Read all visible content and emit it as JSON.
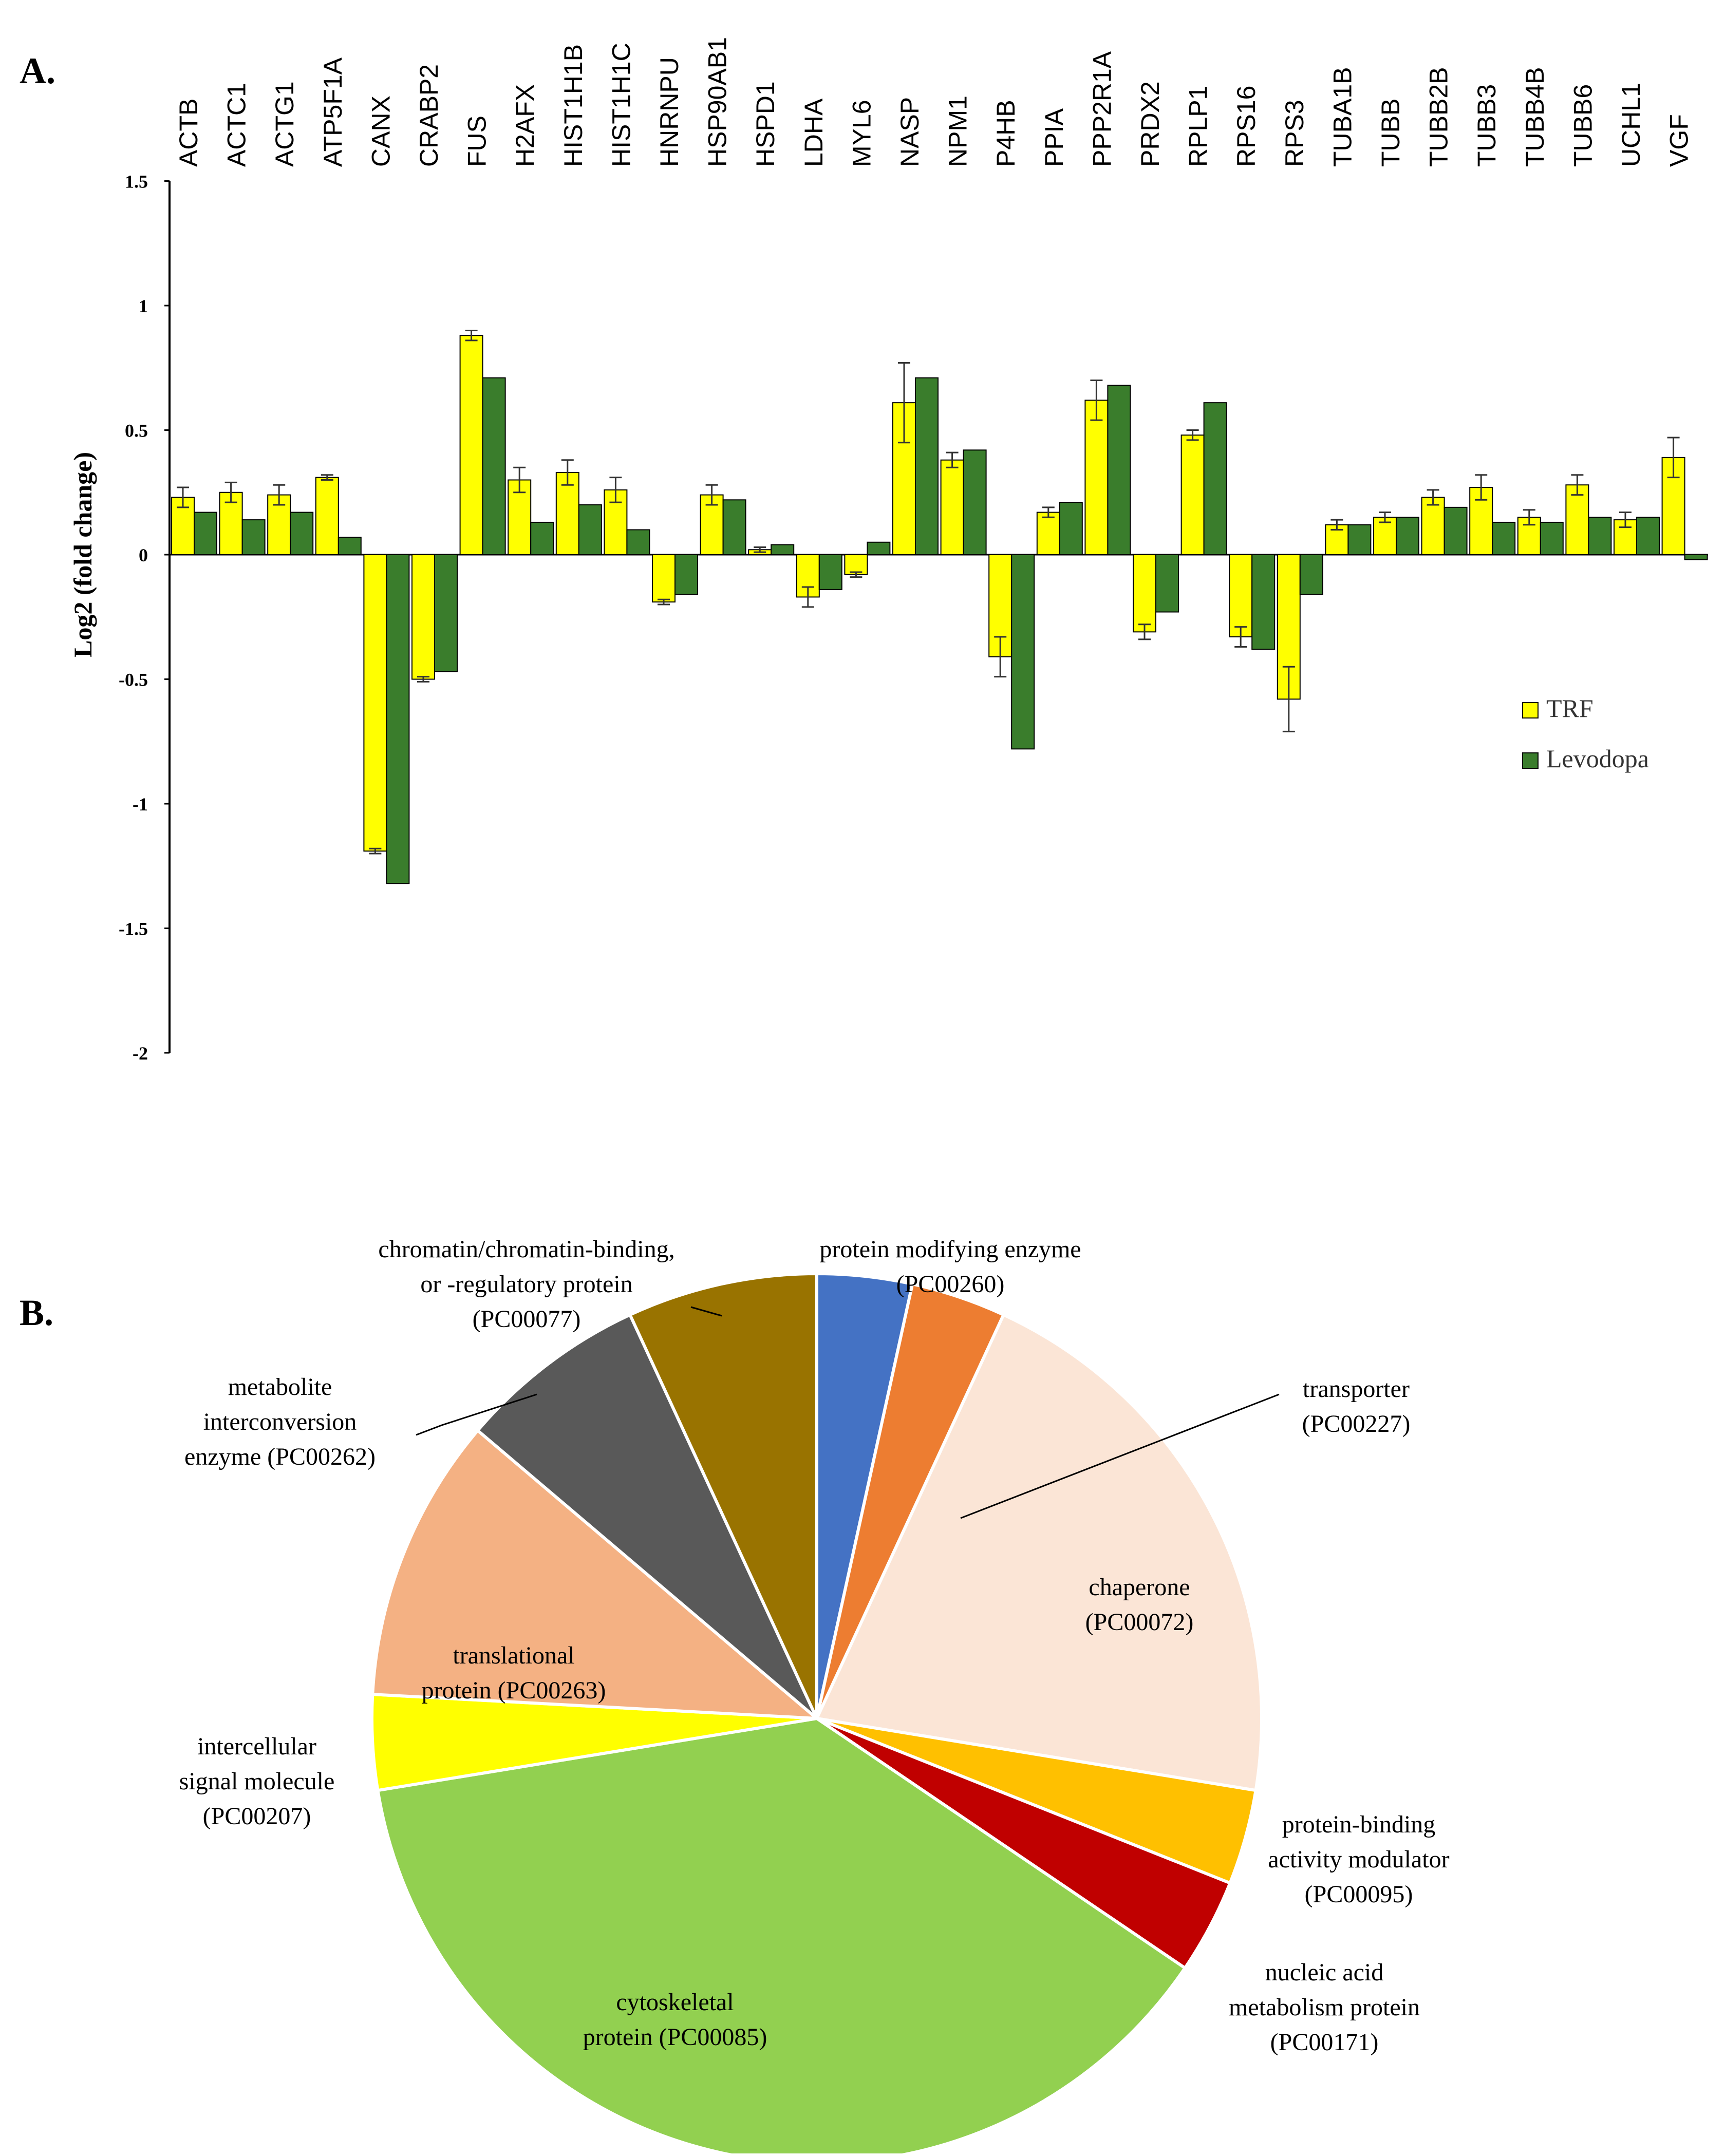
{
  "chart_data": [
    {
      "panel": "A.",
      "type": "bar",
      "ylabel": "Log2 (fold change)",
      "ylim": [
        -2,
        1.5
      ],
      "yticks": [
        1.5,
        1,
        0.5,
        0,
        -0.5,
        -1,
        -1.5,
        -2
      ],
      "categories": [
        "ACTB",
        "ACTC1",
        "ACTG1",
        "ATP5F1A",
        "CANX",
        "CRABP2",
        "FUS",
        "H2AFX",
        "HIST1H1B",
        "HIST1H1C",
        "HNRNPU",
        "HSP90AB1",
        "HSPD1",
        "LDHA",
        "MYL6",
        "NASP",
        "NPM1",
        "P4HB",
        "PPIA",
        "PPP2R1A",
        "PRDX2",
        "RPLP1",
        "RPS16",
        "RPS3",
        "TUBA1B",
        "TUBB",
        "TUBB2B",
        "TUBB3",
        "TUBB4B",
        "TUBB6",
        "UCHL1",
        "VGF"
      ],
      "series": [
        {
          "name": "TRF",
          "color": "#FFFF00",
          "values": [
            0.23,
            0.25,
            0.24,
            0.31,
            -1.19,
            -0.5,
            0.88,
            0.3,
            0.33,
            0.26,
            -0.19,
            0.24,
            0.02,
            -0.17,
            -0.08,
            0.61,
            0.38,
            -0.41,
            0.17,
            0.62,
            -0.31,
            0.48,
            -0.33,
            -0.58,
            0.12,
            0.15,
            0.23,
            0.27,
            0.15,
            0.28,
            0.14,
            0.39
          ],
          "errors": [
            0.04,
            0.04,
            0.04,
            0.01,
            0.01,
            0.01,
            0.02,
            0.05,
            0.05,
            0.05,
            0.01,
            0.04,
            0.01,
            0.04,
            0.01,
            0.16,
            0.03,
            0.08,
            0.02,
            0.08,
            0.03,
            0.02,
            0.04,
            0.13,
            0.02,
            0.02,
            0.03,
            0.05,
            0.03,
            0.04,
            0.03,
            0.08
          ]
        },
        {
          "name": "Levodopa",
          "color": "#3A7D2C",
          "values": [
            0.17,
            0.14,
            0.17,
            0.07,
            -1.32,
            -0.47,
            0.71,
            0.13,
            0.2,
            0.1,
            -0.16,
            0.22,
            0.04,
            -0.14,
            0.05,
            0.71,
            0.42,
            -0.78,
            0.21,
            0.68,
            -0.23,
            0.61,
            -0.38,
            -0.16,
            0.12,
            0.15,
            0.19,
            0.13,
            0.13,
            0.15,
            0.15,
            -0.02
          ]
        }
      ]
    },
    {
      "panel": "B.",
      "type": "pie",
      "slices": [
        {
          "name": "protein modifying enzyme (PC00260)",
          "value": 1,
          "color": "#4472C4",
          "lines": [
            "protein  modifying  enzyme",
            "(PC00260)"
          ]
        },
        {
          "name": "transporter (PC00227)",
          "value": 1,
          "color": "#ED7D31",
          "lines": [
            "transporter",
            "(PC00227)"
          ]
        },
        {
          "name": "chaperone (PC00072)",
          "value": 6,
          "color": "#FBE5D6",
          "lines": [
            "chaperone",
            "(PC00072)"
          ]
        },
        {
          "name": "protein-binding activity modulator (PC00095)",
          "value": 1,
          "color": "#FFC000",
          "lines": [
            "protein-binding",
            "activity  modulator",
            "(PC00095)"
          ]
        },
        {
          "name": "nucleic acid metabolism protein (PC00171)",
          "value": 1,
          "color": "#C00000",
          "lines": [
            "nucleic  acid",
            "metabolism  protein",
            "(PC00171)"
          ]
        },
        {
          "name": "cytoskeletal protein (PC00085)",
          "value": 11,
          "color": "#92D050",
          "lines": [
            "cytoskeletal",
            "protein  (PC00085)"
          ]
        },
        {
          "name": "intercellular signal molecule (PC00207)",
          "value": 1,
          "color": "#FFFF00",
          "lines": [
            "intercellular",
            "signal  molecule",
            "(PC00207)"
          ]
        },
        {
          "name": "translational protein (PC00263)",
          "value": 3,
          "color": "#F4B183",
          "lines": [
            "translational",
            "protein  (PC00263)"
          ]
        },
        {
          "name": "metabolite interconversion enzyme (PC00262)",
          "value": 2,
          "color": "#595959",
          "lines": [
            "metabolite",
            "interconversion",
            "enzyme  (PC00262)"
          ]
        },
        {
          "name": "chromatin/chromatin-binding, or -regulatory protein (PC00077)",
          "value": 2,
          "color": "#997300",
          "lines": [
            "chromatin/chromatin-binding,",
            "or  -regulatory  protein",
            "(PC00077)"
          ]
        }
      ]
    }
  ]
}
